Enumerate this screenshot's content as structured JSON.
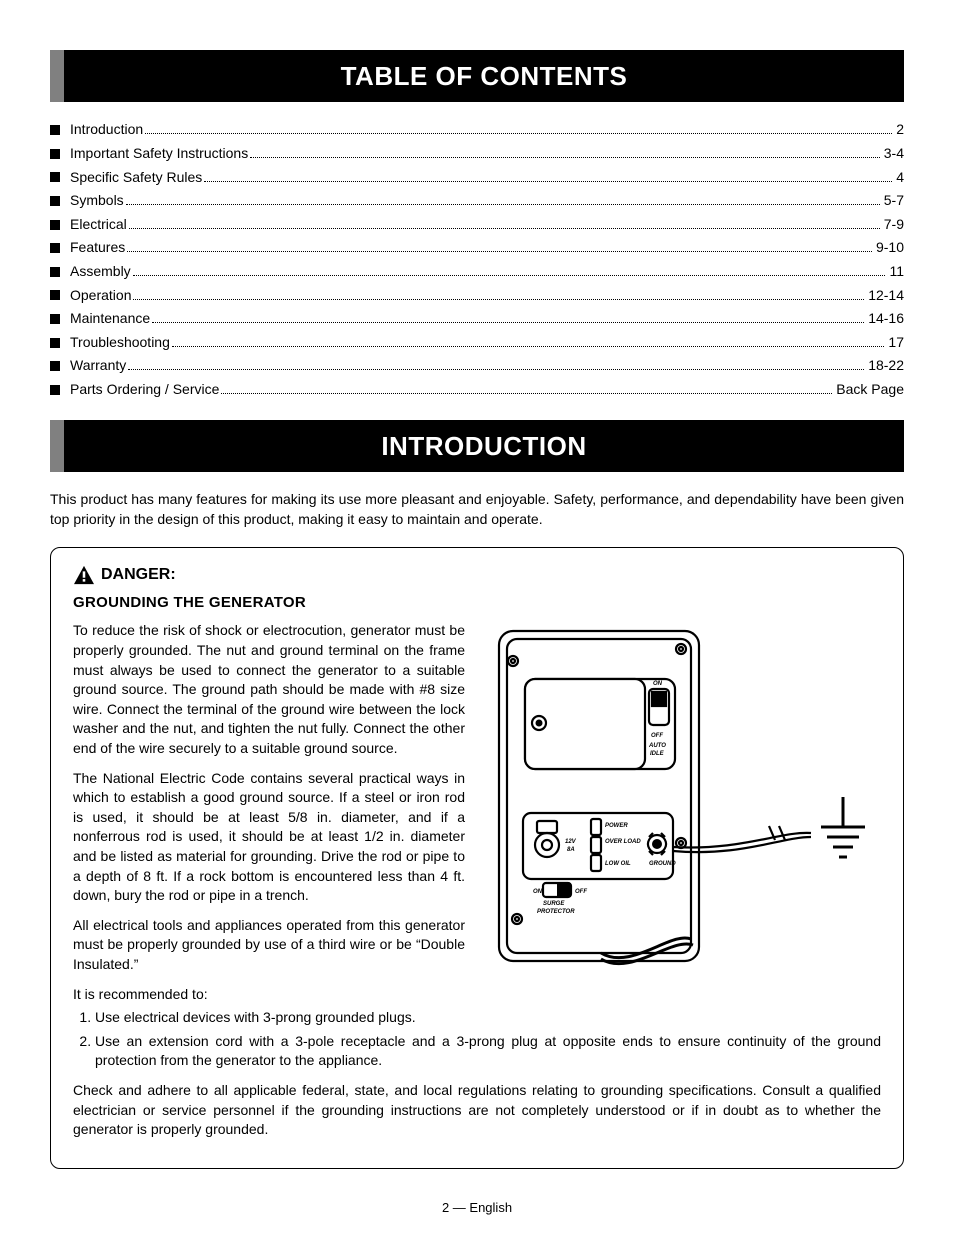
{
  "headers": {
    "toc": "TABLE OF CONTENTS",
    "intro": "INTRODUCTION"
  },
  "toc_items": [
    {
      "label": "Introduction",
      "page": "2"
    },
    {
      "label": "Important Safety Instructions",
      "page": "3-4"
    },
    {
      "label": "Specific Safety Rules",
      "page": "4"
    },
    {
      "label": "Symbols",
      "page": "5-7"
    },
    {
      "label": "Electrical",
      "page": "7-9"
    },
    {
      "label": "Features",
      "page": "9-10"
    },
    {
      "label": "Assembly",
      "page": "11"
    },
    {
      "label": "Operation",
      "page": "12-14"
    },
    {
      "label": "Maintenance",
      "page": "14-16"
    },
    {
      "label": "Troubleshooting",
      "page": "17"
    },
    {
      "label": "Warranty",
      "page": "18-22"
    },
    {
      "label": "Parts Ordering / Service",
      "page": "Back Page"
    }
  ],
  "intro_paragraph": "This product has many features for making its use more pleasant and enjoyable. Safety, performance, and dependability have been given top priority in the design of this product, making it easy to maintain and operate.",
  "danger": {
    "label": "DANGER:",
    "subtitle": "GROUNDING THE GENERATOR",
    "p1": "To reduce the risk of shock or electrocution, generator must be properly grounded. The nut and ground terminal on the frame must always be used to connect the generator to a suitable ground source. The ground path should be made with #8 size wire. Connect the terminal of the ground wire between the lock washer and the nut, and tighten the nut fully. Connect the other end of the wire securely to a suitable ground source.",
    "p2": "The National Electric Code contains several practical ways in which to establish a good ground source. If a steel or iron rod is used, it should be at least 5/8 in. diameter, and if a nonferrous rod is used, it should be at least 1/2 in. diameter and be listed as material for grounding. Drive the rod or pipe to a depth of 8 ft. If a rock bottom is encountered less than 4 ft. down, bury the rod or pipe in a trench.",
    "p3": "All electrical tools and appliances operated from this generator must be properly grounded by use of a third wire or be “Double Insulated.”",
    "rec_intro": "It is recommended to:",
    "rec1": "Use electrical devices with 3-prong grounded plugs.",
    "rec2": "Use an extension cord with a 3-pole receptacle and a 3-prong plug at opposite ends to ensure continuity of the ground protection from the generator to the appliance.",
    "p4": "Check and adhere to all applicable federal, state, and local regulations relating to grounding specifications. Consult a qualified electrician or service personnel if the grounding instructions are not completely understood or if in doubt as to whether the generator is properly grounded."
  },
  "footer": "2 — English",
  "panel_labels": {
    "on": "ON",
    "off": "OFF",
    "auto": "AUTO",
    "idle": "IDLE",
    "power": "POWER",
    "overload": "OVER LOAD",
    "lowoil": "LOW OIL",
    "ground": "GROUND",
    "v12": "12V",
    "a8": "8A",
    "surge": "SURGE",
    "protector": "PROTECTOR"
  },
  "colors": {
    "header_bg": "#000000",
    "header_accent": "#808080",
    "text": "#000000",
    "page_bg": "#ffffff"
  }
}
